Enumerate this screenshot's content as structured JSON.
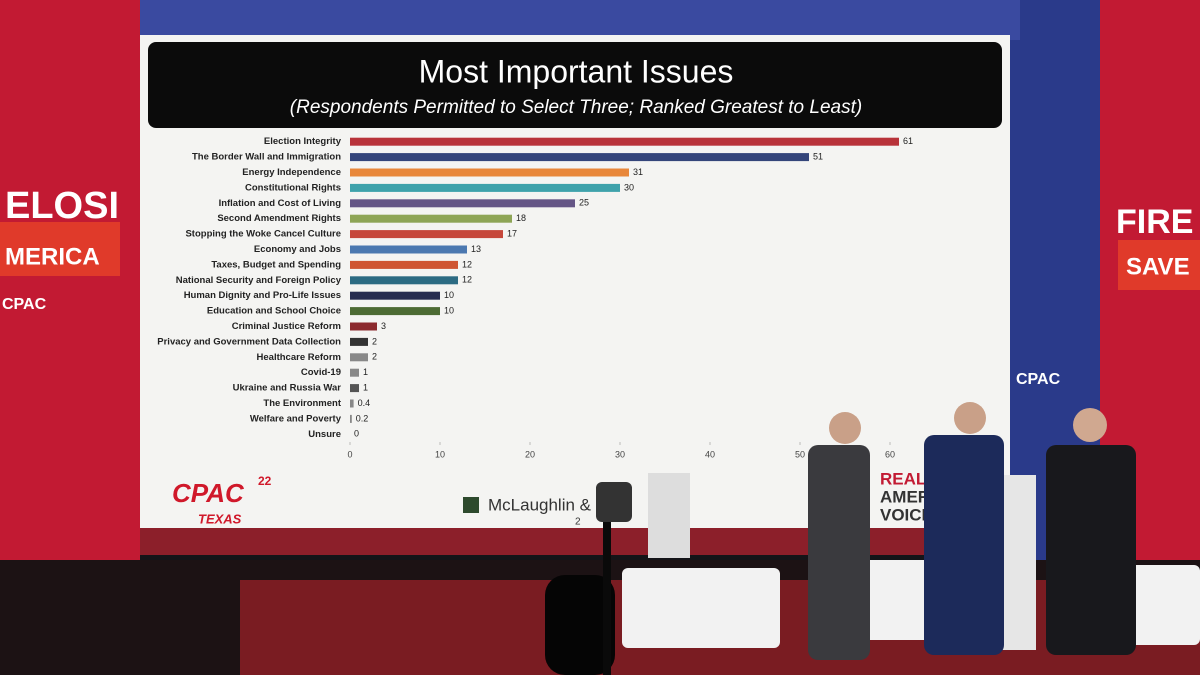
{
  "chart_data": {
    "type": "bar",
    "orientation": "horizontal",
    "title": "Most Important Issues",
    "subtitle": "(Respondents Permitted to Select Three; Ranked Greatest to Least)",
    "categories": [
      "Election Integrity",
      "The Border Wall and Immigration",
      "Energy Independence",
      "Constitutional Rights",
      "Inflation and Cost of Living",
      "Second Amendment Rights",
      "Stopping the Woke Cancel Culture",
      "Economy and Jobs",
      "Taxes, Budget and Spending",
      "National Security and Foreign Policy",
      "Human Dignity and Pro-Life Issues",
      "Education and School Choice",
      "Criminal Justice Reform",
      "Privacy and Government Data Collection",
      "Healthcare Reform",
      "Covid-19",
      "Ukraine and Russia War",
      "The Environment",
      "Welfare and Poverty",
      "Unsure"
    ],
    "values": [
      61,
      51,
      31,
      30,
      25,
      18,
      17,
      13,
      12,
      12,
      10,
      10,
      3,
      2,
      2,
      1,
      1,
      0.4,
      0.2,
      0
    ],
    "colors": [
      "#b8333a",
      "#34457a",
      "#e8873a",
      "#3fa2ab",
      "#655686",
      "#8ea556",
      "#c6473b",
      "#4b78b0",
      "#cf5532",
      "#2c6b83",
      "#262c4f",
      "#4d6b34",
      "#8c2a2e",
      "#333333",
      "#888888",
      "#888888",
      "#555555",
      "#888888",
      "#888888",
      "#888888"
    ],
    "xlim": [
      0,
      70
    ],
    "xticks": [
      0,
      10,
      20,
      30,
      40,
      50,
      60
    ]
  },
  "scene": {
    "left_banner": [
      "ELOSI",
      "MERICA",
      "CPAC"
    ],
    "right_banner": [
      "FIRE",
      "SAVE",
      "CPAC"
    ],
    "logo": "CPAC",
    "logo_year": "22",
    "logo_place": "TEXAS",
    "sponsor": "McLaughlin &",
    "page_number": "2",
    "network": [
      "REAL",
      "AMER",
      "VOICE"
    ]
  }
}
